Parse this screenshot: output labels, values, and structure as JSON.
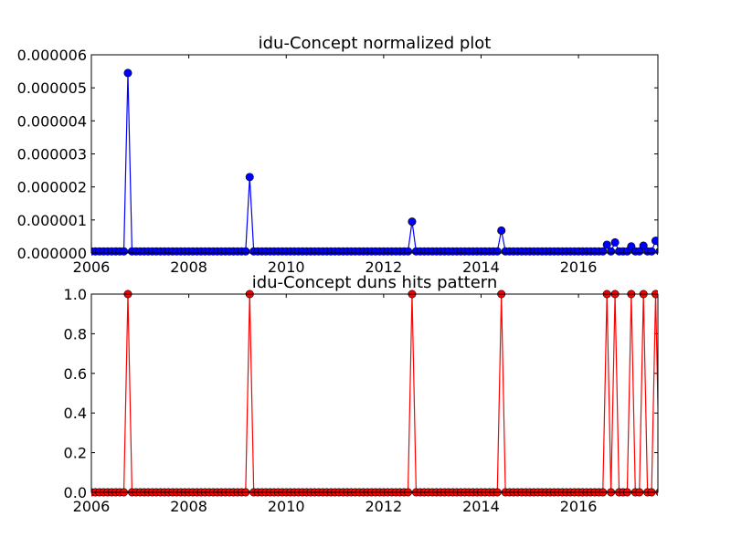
{
  "chart_data": [
    {
      "type": "line",
      "title": "idu-Concept normalized plot",
      "xlabel": "",
      "ylabel": "",
      "xlim": [
        2006.0,
        2017.63
      ],
      "ylim": [
        0,
        6e-06
      ],
      "x_ticks": [
        "2006",
        "2008",
        "2010",
        "2012",
        "2014",
        "2016"
      ],
      "y_ticks": [
        "0.000000",
        "0.000001",
        "0.000002",
        "0.000003",
        "0.000004",
        "0.000005",
        "0.000006"
      ],
      "color": "#0000ff",
      "marker_face": "#0000ff",
      "baseline_value": 5e-08,
      "peaks": [
        {
          "x": 2006.75,
          "y": 5.45e-06
        },
        {
          "x": 2009.25,
          "y": 2.3e-06
        },
        {
          "x": 2012.58,
          "y": 9.5e-07
        },
        {
          "x": 2014.42,
          "y": 6.8e-07
        },
        {
          "x": 2016.58,
          "y": 2.5e-07
        },
        {
          "x": 2016.75,
          "y": 3.2e-07
        },
        {
          "x": 2017.08,
          "y": 2e-07
        },
        {
          "x": 2017.33,
          "y": 2.2e-07
        },
        {
          "x": 2017.58,
          "y": 3.7e-07
        }
      ],
      "grid": false
    },
    {
      "type": "line",
      "title": "idu-Concept duns hits pattern",
      "xlabel": "",
      "ylabel": "",
      "xlim": [
        2006.0,
        2017.63
      ],
      "ylim": [
        0,
        1.0
      ],
      "x_ticks": [
        "2006",
        "2008",
        "2010",
        "2012",
        "2014",
        "2016"
      ],
      "y_ticks": [
        "0.0",
        "0.2",
        "0.4",
        "0.6",
        "0.8",
        "1.0"
      ],
      "color": "#ff0000",
      "marker_face": "#ff0000",
      "baseline_value": 0,
      "peaks": [
        {
          "x": 2006.75,
          "y": 1
        },
        {
          "x": 2009.25,
          "y": 1
        },
        {
          "x": 2012.58,
          "y": 1
        },
        {
          "x": 2014.42,
          "y": 1
        },
        {
          "x": 2016.58,
          "y": 1
        },
        {
          "x": 2016.75,
          "y": 1
        },
        {
          "x": 2017.08,
          "y": 1
        },
        {
          "x": 2017.33,
          "y": 1
        },
        {
          "x": 2017.58,
          "y": 1
        }
      ],
      "grid": false
    }
  ]
}
